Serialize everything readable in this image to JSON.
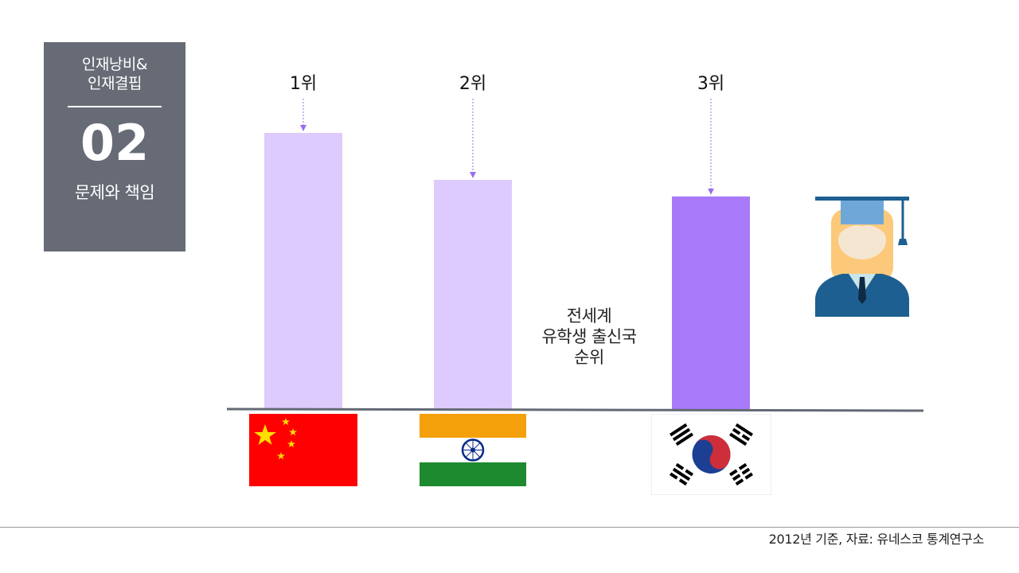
{
  "section": {
    "title_line1": "인재낭비&",
    "title_line2": "인재결핍",
    "number": "02",
    "subtitle": "문제와 책임"
  },
  "center_note": {
    "line1": "전세계",
    "line2": "유학생 출신국",
    "line3": "순위"
  },
  "source": "2012년 기준, 자료: 유네스코 통계연구소",
  "colors": {
    "bar_light": "#dccbfc",
    "bar_highlight": "#a87afa",
    "arrow": "#9b6ef0",
    "baseline": "#636a75",
    "panel": "#666b75"
  },
  "chart_data": {
    "type": "bar",
    "categories": [
      "China",
      "India",
      "",
      "Korea"
    ],
    "rank_labels": [
      "1위",
      "2위",
      "",
      "3위"
    ],
    "values": [
      100,
      83,
      0,
      77
    ],
    "highlight_index": 3,
    "ylim": [
      0,
      100
    ],
    "grid": false,
    "note": "relative bar heights; no axis values printed"
  }
}
